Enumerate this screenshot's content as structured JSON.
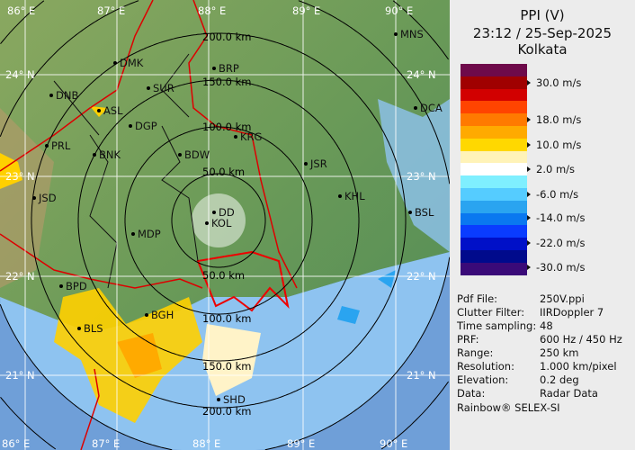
{
  "header": {
    "product": "PPI (V)",
    "datetime": "23:12 / 25-Sep-2025",
    "station": "Kolkata"
  },
  "legend": {
    "colors": [
      "#6e0a4a",
      "#a00000",
      "#d20000",
      "#ff4400",
      "#ff7a00",
      "#ffaa00",
      "#ffd800",
      "#fff3b8",
      "#ffffff",
      "#7fefff",
      "#55ccff",
      "#2aa4f0",
      "#0a78f0",
      "#0a3cff",
      "#0010c8",
      "#000a8c",
      "#3a0a78"
    ],
    "labels": [
      "30.0 m/s",
      "18.0 m/s",
      "10.0 m/s",
      "2.0 m/s",
      "-6.0 m/s",
      "-14.0 m/s",
      "-22.0 m/s",
      "-30.0 m/s"
    ]
  },
  "info": [
    {
      "key": "Pdf File:",
      "value": "250V.ppi"
    },
    {
      "key": "Clutter Filter:",
      "value": "IIRDoppler 7"
    },
    {
      "key": "Time sampling:",
      "value": "48"
    },
    {
      "key": "PRF:",
      "value": "600 Hz / 450 Hz"
    },
    {
      "key": "Range:",
      "value": "250 km"
    },
    {
      "key": "Resolution:",
      "value": "1.000 km/pixel"
    },
    {
      "key": "Elevation:",
      "value": "0.2 deg"
    },
    {
      "key": "Data:",
      "value": "Radar Data"
    }
  ],
  "footer": "Rainbow® SELEX-SI",
  "map": {
    "lon_labels": [
      "86° E",
      "87° E",
      "88° E",
      "89° E",
      "90° E"
    ],
    "lat_labels": [
      "24° N",
      "23° N",
      "22° N",
      "21° N"
    ],
    "ring_labels": [
      "50.0 km",
      "100.0 km",
      "150.0 km",
      "200.0 km"
    ],
    "cities": [
      "MNS",
      "DMK",
      "BRP",
      "SUR",
      "DNB",
      "ASL",
      "DGP",
      "DCA",
      "KRG",
      "PRL",
      "BNK",
      "BDW",
      "JSR",
      "KHL",
      "JSD",
      "BSL",
      "MDP",
      "BPD",
      "BLS",
      "BGH",
      "SHD",
      "DD",
      "KOL"
    ]
  }
}
